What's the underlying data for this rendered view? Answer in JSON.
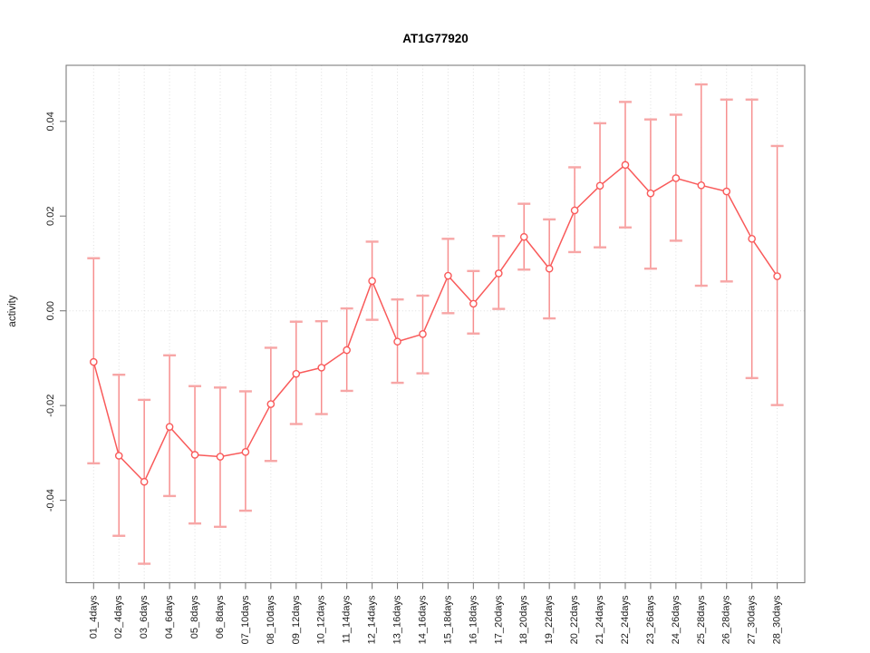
{
  "chart_data": {
    "type": "line",
    "title": "AT1G77920",
    "xlabel": "",
    "ylabel": "activity",
    "legend": "none",
    "grid": {
      "vertical": "light dotted gridline at every category",
      "horizontal": "light dotted line at y=0 only"
    },
    "y_axis": {
      "ticks": [
        -0.04,
        -0.02,
        0,
        0.02,
        0.04
      ],
      "tick_labels": [
        "-0.04",
        "-0.02",
        "0.00",
        "0.02",
        "0.04"
      ],
      "range": [
        -0.0573,
        0.0519
      ]
    },
    "categories": [
      "01_4days",
      "02_4days",
      "03_6days",
      "04_6days",
      "05_8days",
      "06_8days",
      "07_10days",
      "08_10days",
      "09_12days",
      "10_12days",
      "11_14days",
      "12_14days",
      "13_16days",
      "14_16days",
      "15_18days",
      "16_18days",
      "17_20days",
      "18_20days",
      "19_22days",
      "20_22days",
      "21_24days",
      "22_24days",
      "23_26days",
      "24_26days",
      "25_28days",
      "26_28days",
      "27_30days",
      "28_30days"
    ],
    "series": [
      {
        "name": "activity",
        "marker": "open-circle",
        "error_bars": true,
        "values": [
          -0.0108,
          -0.0306,
          -0.0361,
          -0.0245,
          -0.0304,
          -0.0308,
          -0.0298,
          -0.0197,
          -0.0133,
          -0.012,
          -0.0083,
          0.0063,
          -0.0065,
          -0.0049,
          0.0074,
          0.0015,
          0.0079,
          0.0156,
          0.0089,
          0.0212,
          0.0264,
          0.0308,
          0.0248,
          0.028,
          0.0265,
          0.0252,
          0.0152,
          0.0073
        ],
        "upper": [
          0.0111,
          -0.0135,
          -0.0188,
          -0.0094,
          -0.0159,
          -0.0162,
          -0.017,
          -0.0078,
          -0.0023,
          -0.0022,
          0.0005,
          0.0146,
          0.0024,
          0.0032,
          0.0152,
          0.0084,
          0.0158,
          0.0226,
          0.0193,
          0.0303,
          0.0396,
          0.0441,
          0.0404,
          0.0414,
          0.0478,
          0.0446,
          0.0446,
          0.0348
        ],
        "lower": [
          -0.0322,
          -0.0475,
          -0.0534,
          -0.0391,
          -0.0449,
          -0.0456,
          -0.0422,
          -0.0317,
          -0.0239,
          -0.0218,
          -0.0169,
          -0.0019,
          -0.0152,
          -0.0132,
          -0.0005,
          -0.0048,
          0.0004,
          0.0087,
          -0.0016,
          0.0124,
          0.0134,
          0.0176,
          0.0089,
          0.0148,
          0.0053,
          0.0062,
          -0.0142,
          -0.0199
        ]
      }
    ],
    "colors": {
      "series": "#f95a5a",
      "error_bar": "#f78f8f",
      "error_cap": "#f7a6a6",
      "grid": "#dedede",
      "axis": "#7d7d7d",
      "text": "#1a1a1a",
      "background": "#ffffff"
    }
  }
}
